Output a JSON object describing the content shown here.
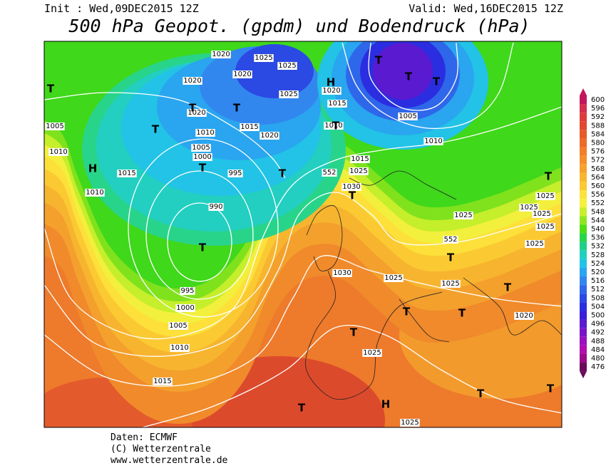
{
  "header": {
    "init": "Init : Wed,09DEC2015 12Z",
    "valid": "Valid: Wed,16DEC2015 12Z",
    "title": "500 hPa Geopot. (gpdm) und Bodendruck (hPa)"
  },
  "colorbar": {
    "levels": [
      600,
      596,
      592,
      588,
      584,
      580,
      576,
      572,
      568,
      564,
      560,
      556,
      552,
      548,
      544,
      540,
      536,
      532,
      528,
      524,
      520,
      516,
      512,
      508,
      504,
      500,
      496,
      492,
      488,
      484,
      480,
      476
    ],
    "colors": [
      "#c2185b",
      "#d32f4f",
      "#dc3c3c",
      "#e0482f",
      "#e65a2a",
      "#eb6b2a",
      "#f07e2a",
      "#f3902b",
      "#f5a32d",
      "#f8b630",
      "#fbc934",
      "#fde23a",
      "#f5f03d",
      "#c8ef2b",
      "#8ee61f",
      "#4fdc17",
      "#28d44a",
      "#20cf8a",
      "#20cfc0",
      "#20c3e6",
      "#2aa5ef",
      "#3287ef",
      "#2f67ea",
      "#2b49e3",
      "#2a2ee0",
      "#3a1fd8",
      "#5a1ad0",
      "#7a14c8",
      "#9a10c0",
      "#b20cb0",
      "#9a0a8a",
      "#6a0a5a"
    ]
  },
  "isobar_labels": [
    "1005",
    "1010",
    "1015",
    "1010",
    "995",
    "990",
    "995",
    "1000",
    "1005",
    "1010",
    "1015",
    "1030",
    "1025",
    "1025",
    "1025",
    "1025",
    "1020",
    "1025",
    "1025",
    "1025",
    "1015",
    "1010",
    "1005",
    "1015",
    "1020",
    "1025",
    "1025",
    "1020",
    "1015",
    "1020",
    "1010",
    "1005",
    "1000",
    "1020",
    "1030",
    "1010",
    "552",
    "552",
    "1025",
    "1025",
    "1025",
    "1025",
    "1020",
    "1020",
    "1025"
  ],
  "pressure_centers": [
    "T",
    "H",
    "T",
    "T",
    "T",
    "T",
    "T",
    "T",
    "H",
    "T",
    "T",
    "T",
    "T",
    "T",
    "T",
    "T",
    "T",
    "T",
    "T",
    "T",
    "T",
    "T",
    "H",
    "T"
  ],
  "footer": [
    "Daten: ECMWF",
    "(C) Wetterzentrale",
    "www.wetterzentrale.de"
  ]
}
